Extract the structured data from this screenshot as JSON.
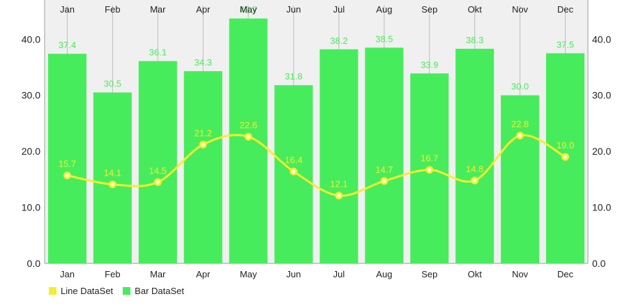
{
  "chart_data": {
    "type": "bar",
    "categories": [
      "Jan",
      "Feb",
      "Mar",
      "Apr",
      "May",
      "Jun",
      "Jul",
      "Aug",
      "Sep",
      "Okt",
      "Nov",
      "Dec"
    ],
    "series": [
      {
        "name": "Line DataSet",
        "type": "line",
        "color": "#F5EE2F",
        "values": [
          15.7,
          14.1,
          14.5,
          21.2,
          22.6,
          16.4,
          12.1,
          14.7,
          16.7,
          14.8,
          22.8,
          19.0
        ]
      },
      {
        "name": "Bar DataSet",
        "type": "bar",
        "color": "#47EC5C",
        "values": [
          37.4,
          30.5,
          36.1,
          34.3,
          43.7,
          31.8,
          38.2,
          38.5,
          33.9,
          38.3,
          30.0,
          37.5
        ]
      }
    ],
    "ylim": [
      0,
      47
    ],
    "yticks": [
      "0.0",
      "10.0",
      "20.0",
      "30.0",
      "40.0"
    ],
    "grid": "vertical",
    "legend": "bottom-left",
    "label_color_bar": "#47EC5C",
    "label_color_line": "#F5EE2F",
    "background": "#F0F0F0"
  }
}
